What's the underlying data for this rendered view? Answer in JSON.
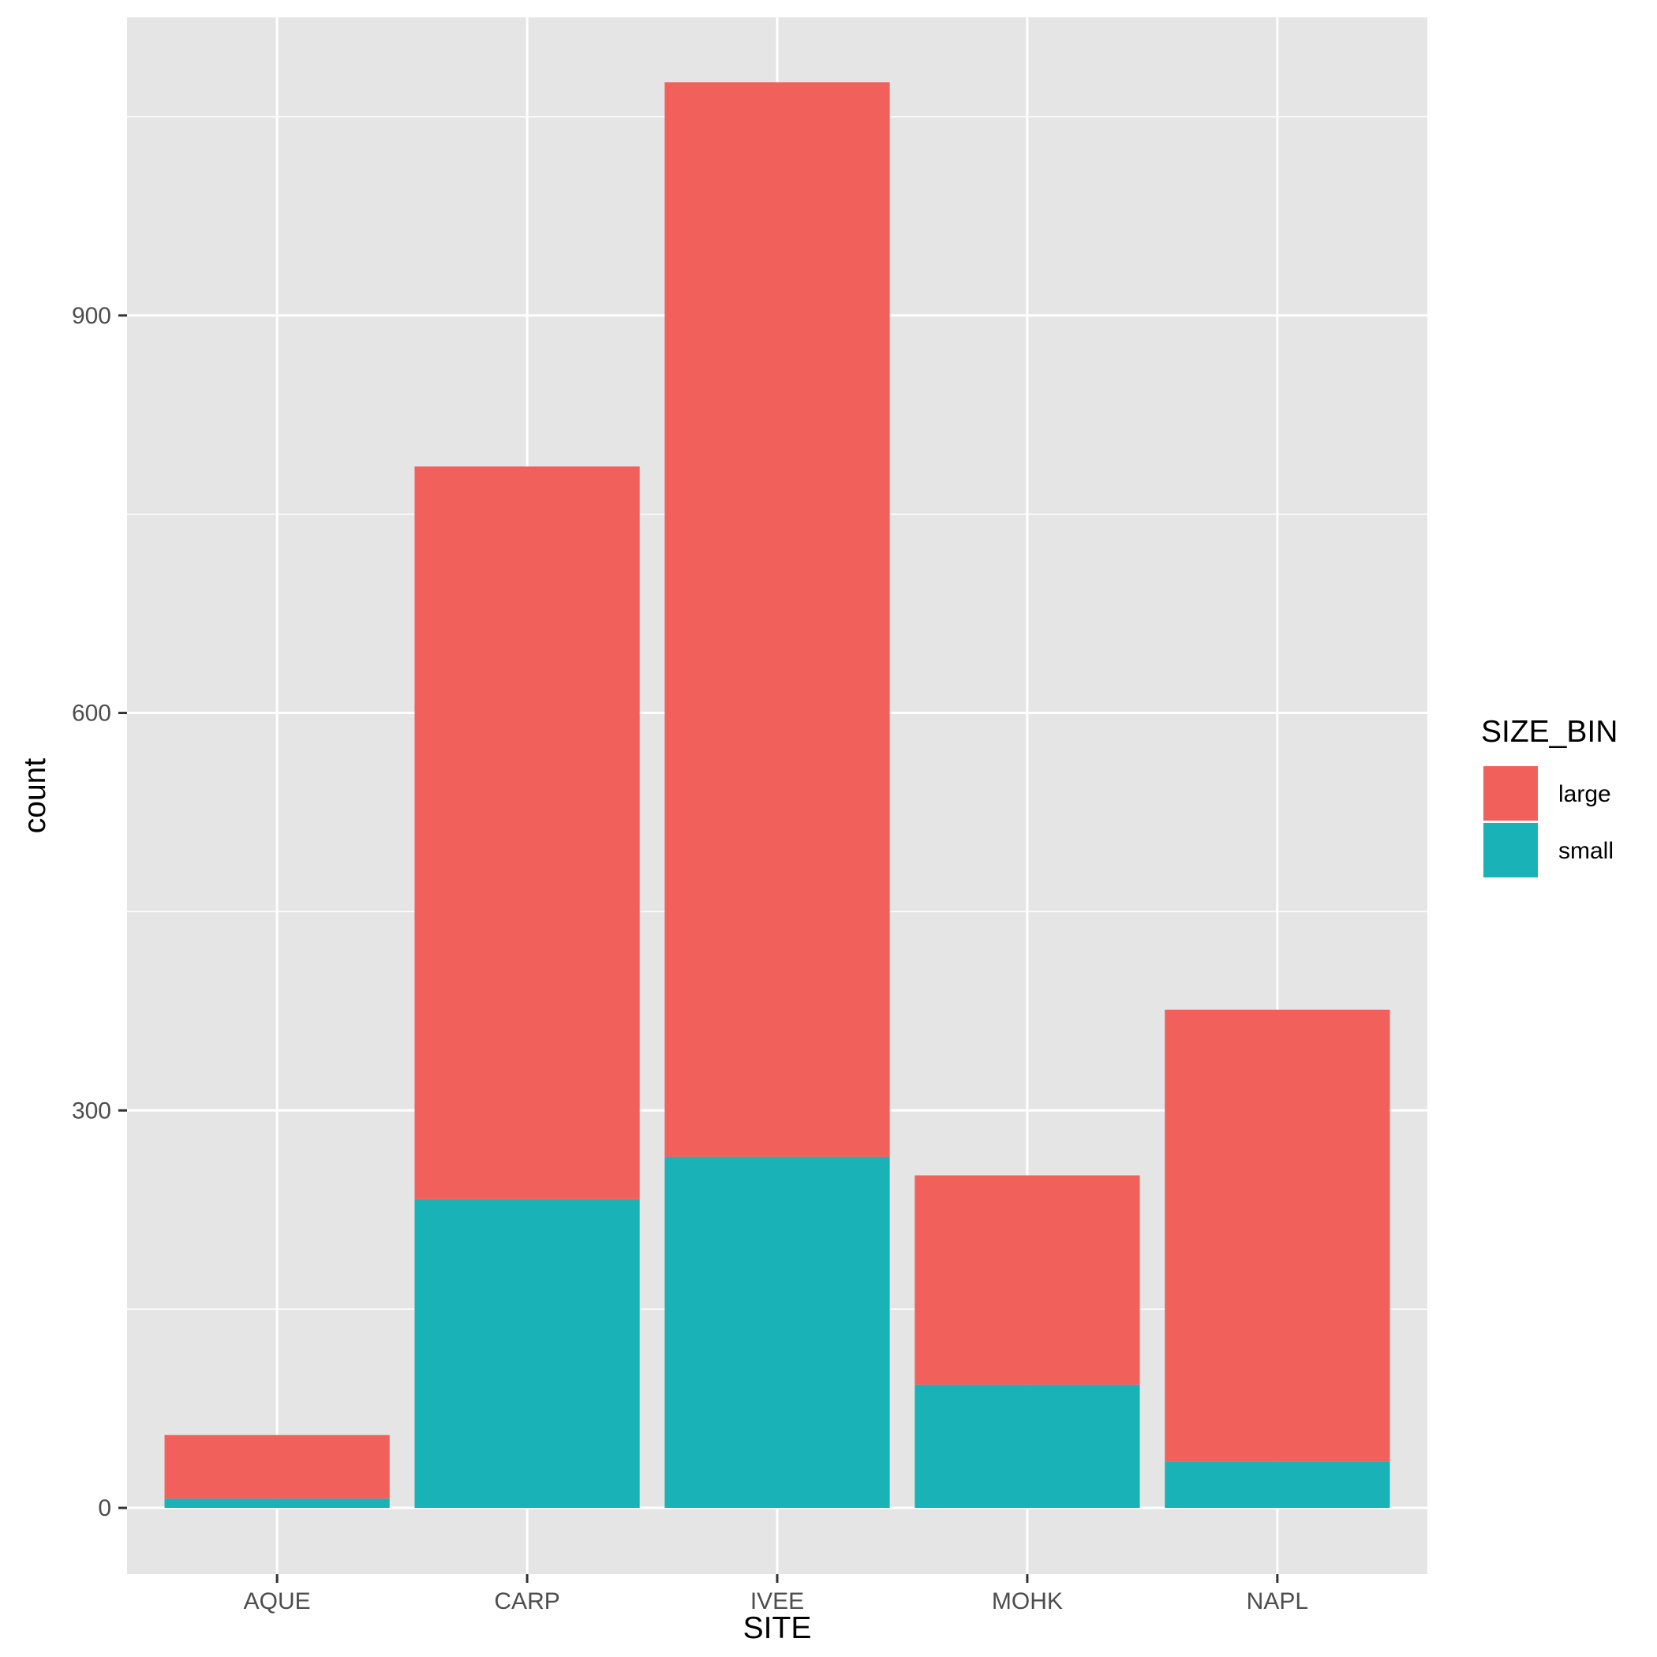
{
  "chart_data": {
    "type": "bar",
    "stacked": true,
    "categories": [
      "AQUE",
      "CARP",
      "IVEE",
      "MOHK",
      "NAPL"
    ],
    "series": [
      {
        "name": "small",
        "values": [
          7,
          233,
          265,
          93,
          35
        ],
        "color": "#19B2B7"
      },
      {
        "name": "large",
        "values": [
          48,
          553,
          811,
          158,
          341
        ],
        "color": "#F2605C"
      }
    ],
    "title": "",
    "xlabel": "SITE",
    "ylabel": "count",
    "ylim": [
      -50,
      1125
    ],
    "yticks": [
      0,
      300,
      600,
      900
    ],
    "yminor": [
      150,
      450,
      750,
      1050
    ],
    "grid": true,
    "panel_background": "#E5E5E5",
    "grid_color": "#FFFFFF",
    "legend": {
      "title": "SIZE_BIN",
      "position": "right",
      "items": [
        {
          "label": "large",
          "color": "#F2605C"
        },
        {
          "label": "small",
          "color": "#19B2B7"
        }
      ]
    }
  }
}
